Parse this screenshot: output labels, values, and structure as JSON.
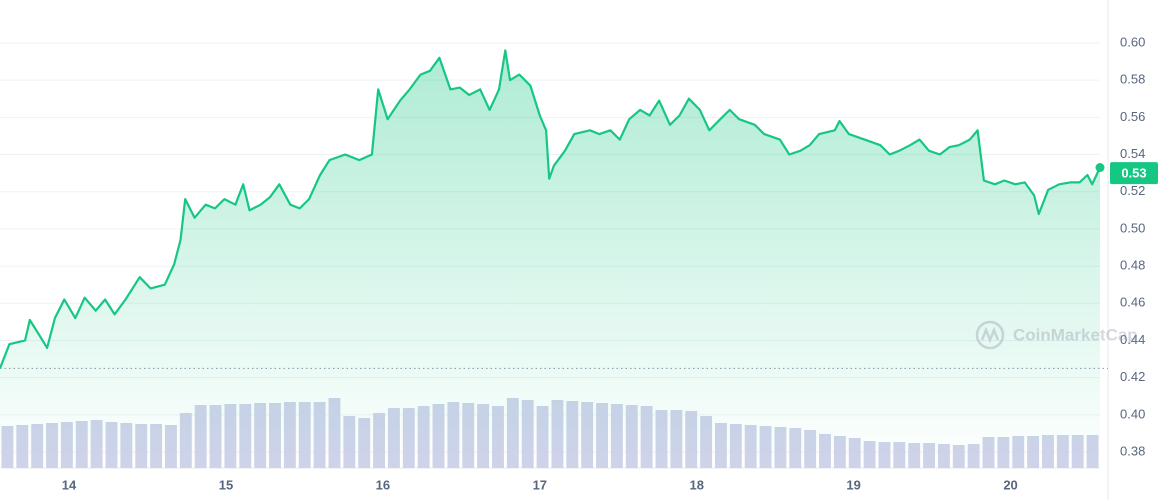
{
  "chart_data": {
    "type": "line",
    "x": [
      13.56,
      13.62,
      13.72,
      13.75,
      13.81,
      13.86,
      13.91,
      13.97,
      14.04,
      14.1,
      14.17,
      14.23,
      14.29,
      14.36,
      14.45,
      14.52,
      14.61,
      14.67,
      14.71,
      14.74,
      14.8,
      14.87,
      14.93,
      14.99,
      15.06,
      15.11,
      15.15,
      15.22,
      15.28,
      15.34,
      15.41,
      15.47,
      15.53,
      15.6,
      15.66,
      15.76,
      15.85,
      15.93,
      15.97,
      16.03,
      16.11,
      16.17,
      16.24,
      16.3,
      16.36,
      16.43,
      16.49,
      16.55,
      16.62,
      16.68,
      16.74,
      16.78,
      16.81,
      16.87,
      16.94,
      17.0,
      17.04,
      17.06,
      17.09,
      17.16,
      17.22,
      17.32,
      17.38,
      17.45,
      17.51,
      17.57,
      17.64,
      17.7,
      17.76,
      17.83,
      17.89,
      17.95,
      18.02,
      18.08,
      18.15,
      18.21,
      18.27,
      18.37,
      18.43,
      18.53,
      18.59,
      18.66,
      18.72,
      18.78,
      18.88,
      18.91,
      18.97,
      19.07,
      19.17,
      19.23,
      19.29,
      19.36,
      19.42,
      19.48,
      19.55,
      19.61,
      19.67,
      19.74,
      19.79,
      19.83,
      19.9,
      19.96,
      20.03,
      20.09,
      20.15,
      20.18,
      20.24,
      20.31,
      20.38,
      20.44,
      20.49,
      20.52,
      20.57
    ],
    "values": [
      0.425,
      0.438,
      0.44,
      0.451,
      0.443,
      0.436,
      0.452,
      0.462,
      0.452,
      0.463,
      0.456,
      0.462,
      0.454,
      0.462,
      0.474,
      0.468,
      0.47,
      0.481,
      0.494,
      0.516,
      0.506,
      0.513,
      0.511,
      0.516,
      0.513,
      0.524,
      0.51,
      0.513,
      0.517,
      0.524,
      0.513,
      0.511,
      0.516,
      0.529,
      0.537,
      0.54,
      0.537,
      0.54,
      0.575,
      0.559,
      0.569,
      0.575,
      0.583,
      0.585,
      0.592,
      0.575,
      0.576,
      0.572,
      0.575,
      0.564,
      0.575,
      0.596,
      0.58,
      0.583,
      0.577,
      0.561,
      0.553,
      0.527,
      0.534,
      0.542,
      0.551,
      0.553,
      0.551,
      0.553,
      0.548,
      0.559,
      0.564,
      0.561,
      0.569,
      0.556,
      0.561,
      0.57,
      0.564,
      0.553,
      0.559,
      0.564,
      0.559,
      0.556,
      0.551,
      0.548,
      0.54,
      0.542,
      0.545,
      0.551,
      0.553,
      0.558,
      0.551,
      0.548,
      0.545,
      0.54,
      0.542,
      0.545,
      0.548,
      0.542,
      0.54,
      0.544,
      0.545,
      0.548,
      0.553,
      0.526,
      0.524,
      0.526,
      0.524,
      0.525,
      0.518,
      0.508,
      0.521,
      0.524,
      0.525,
      0.525,
      0.529,
      0.524,
      0.533
    ],
    "color": "#16c784",
    "xlim": [
      13.56,
      20.57
    ],
    "xticks": [
      14,
      15,
      16,
      17,
      18,
      19,
      20
    ],
    "ylim": [
      0.3714,
      0.6231
    ],
    "yticks": [
      {
        "value": 0.38,
        "label": "0.38"
      },
      {
        "value": 0.4,
        "label": "0.40"
      },
      {
        "value": 0.42,
        "label": "0.42"
      },
      {
        "value": 0.44,
        "label": "0.44"
      },
      {
        "value": 0.46,
        "label": "0.46"
      },
      {
        "value": 0.48,
        "label": "0.48"
      },
      {
        "value": 0.5,
        "label": "0.50"
      },
      {
        "value": 0.52,
        "label": "0.52"
      },
      {
        "value": 0.54,
        "label": "0.54"
      },
      {
        "value": 0.56,
        "label": "0.56"
      },
      {
        "value": 0.58,
        "label": "0.58"
      },
      {
        "value": 0.6,
        "label": "0.60"
      }
    ],
    "grid": true,
    "reference_line": 0.425,
    "current": 0.53,
    "watermark": "CoinMarketCap",
    "volume": {
      "color": "#cfd3ea",
      "values": [
        21,
        21.5,
        22,
        22.5,
        23,
        23.5,
        24,
        23,
        22.5,
        22,
        22,
        21.5,
        27.5,
        31.5,
        31.5,
        32,
        32,
        32.5,
        32.5,
        33,
        33,
        33,
        35,
        26,
        25,
        27.5,
        30,
        30,
        31,
        32,
        33,
        32.5,
        32,
        31,
        35,
        34,
        31,
        34,
        33.5,
        33,
        32.5,
        32,
        31.5,
        31,
        29,
        29,
        28.5,
        26,
        22.5,
        22,
        21.5,
        21,
        20.5,
        20,
        19,
        17,
        16,
        15,
        13.5,
        13,
        13,
        12.5,
        12.5,
        12,
        11.5,
        12,
        15.5,
        15.5,
        16,
        16,
        16.5,
        16.5,
        16.5,
        16.5
      ]
    }
  }
}
